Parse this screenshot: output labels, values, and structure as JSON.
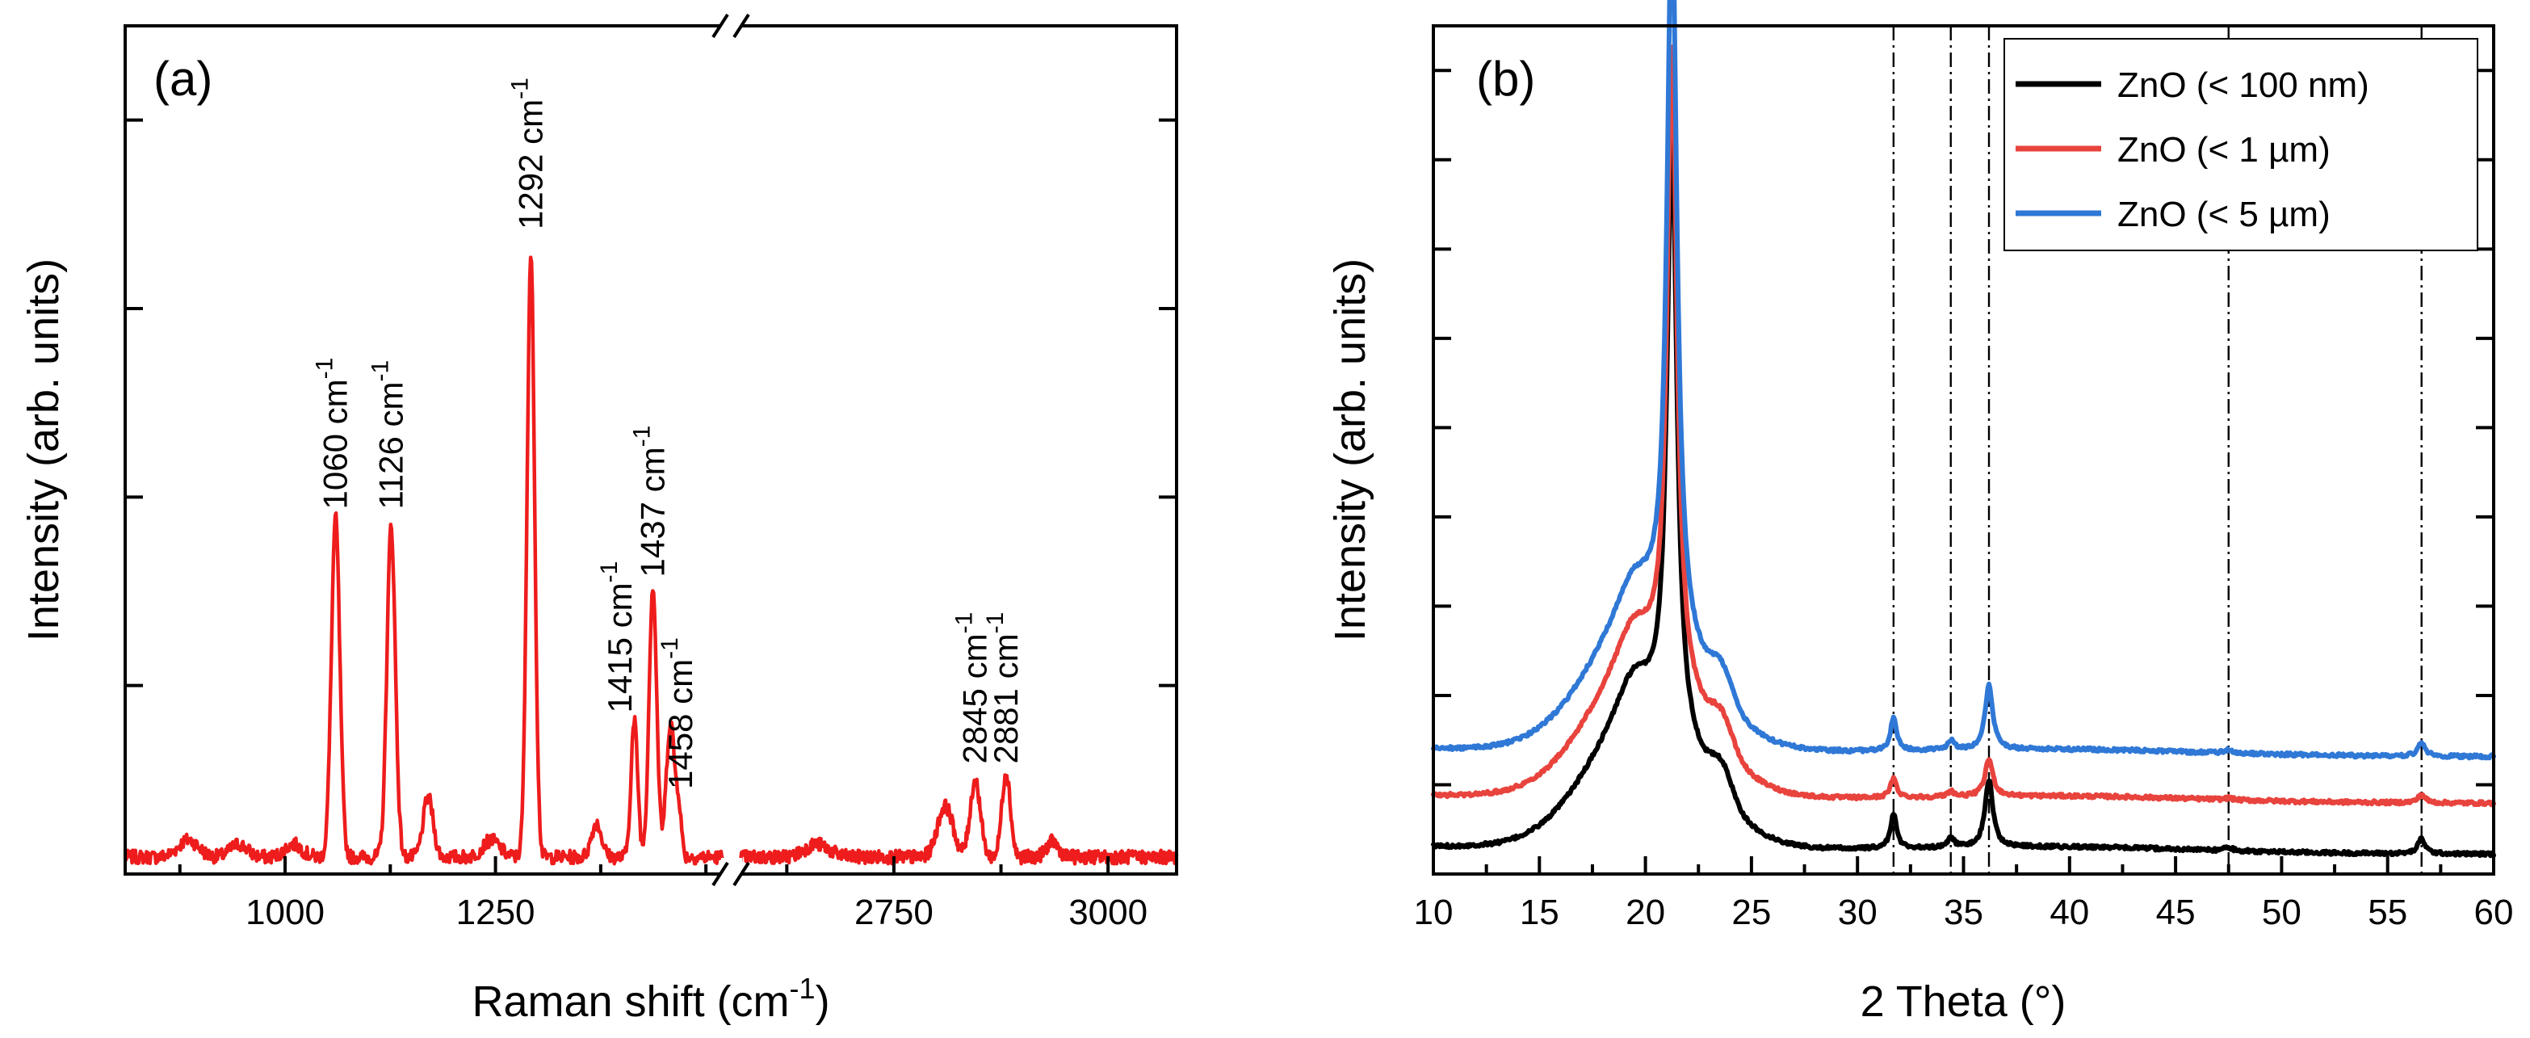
{
  "chart_data": [
    {
      "type": "line",
      "panel_label": "(a)",
      "xlabel": "Raman shift (cm",
      "xlabel_sup": "-1",
      "xlabel_close": ")",
      "ylabel": "Intensity (arb. units)",
      "broken_x_axis": true,
      "segments": [
        {
          "xlim": [
            810,
            1520
          ],
          "ticks": [
            1000,
            1250
          ]
        },
        {
          "xlim": [
            2570,
            3080
          ],
          "ticks": [
            2750,
            3000
          ]
        }
      ],
      "ylim": [
        0,
        1
      ],
      "y_major_ticks": 4,
      "series": [
        {
          "name": "Raman spectrum",
          "color": "#ee1c1c",
          "baseline": 0.02,
          "noise": 0.008,
          "peaks": [
            {
              "x": 885,
              "h": 0.02,
              "w": 12
            },
            {
              "x": 945,
              "h": 0.015,
              "w": 10
            },
            {
              "x": 1010,
              "h": 0.015,
              "w": 10
            },
            {
              "x": 1060,
              "h": 0.4,
              "w": 5
            },
            {
              "x": 1126,
              "h": 0.39,
              "w": 5
            },
            {
              "x": 1170,
              "h": 0.07,
              "w": 6
            },
            {
              "x": 1245,
              "h": 0.02,
              "w": 10
            },
            {
              "x": 1292,
              "h": 0.71,
              "w": 4.5
            },
            {
              "x": 1370,
              "h": 0.04,
              "w": 6
            },
            {
              "x": 1415,
              "h": 0.16,
              "w": 4
            },
            {
              "x": 1437,
              "h": 0.32,
              "w": 4.5
            },
            {
              "x": 1458,
              "h": 0.16,
              "w": 5
            },
            {
              "x": 1468,
              "h": 0.05,
              "w": 3
            },
            {
              "x": 2660,
              "h": 0.015,
              "w": 14
            },
            {
              "x": 2810,
              "h": 0.06,
              "w": 9
            },
            {
              "x": 2845,
              "h": 0.09,
              "w": 6
            },
            {
              "x": 2881,
              "h": 0.1,
              "w": 5
            },
            {
              "x": 2935,
              "h": 0.018,
              "w": 7
            }
          ]
        }
      ],
      "annotations": [
        {
          "text": "1060 cm",
          "sup": "-1",
          "x": 1060,
          "y": 0.43
        },
        {
          "text": "1126 cm",
          "sup": "-1",
          "x": 1126,
          "y": 0.43
        },
        {
          "text": "1292 cm",
          "sup": "-1",
          "x": 1292,
          "y": 0.76
        },
        {
          "text": "1415 cm",
          "sup": "-1",
          "x": 1398,
          "y": 0.19
        },
        {
          "text": "1437 cm",
          "sup": "-1",
          "x": 1437,
          "y": 0.35
        },
        {
          "text": "1458 cm",
          "sup": "-1",
          "x": 1470,
          "y": 0.1
        },
        {
          "text": "2845 cm",
          "sup": "-1",
          "x": 2845,
          "y": 0.13
        },
        {
          "text": "2881 cm",
          "sup": "-1",
          "x": 2881,
          "y": 0.13
        }
      ]
    },
    {
      "type": "line",
      "panel_label": "(b)",
      "xlabel": "2 Theta (°)",
      "ylabel": "Intensity (arb. units)",
      "xlim": [
        10,
        60
      ],
      "x_ticks": [
        10,
        15,
        20,
        25,
        30,
        35,
        40,
        45,
        50,
        55,
        60
      ],
      "ylim": [
        0,
        1
      ],
      "y_major_ticks": 9,
      "reference_lines": [
        31.7,
        34.4,
        36.2,
        47.5,
        56.6
      ],
      "legend": {
        "position": "top-right"
      },
      "series": [
        {
          "name": "ZnO (< 100 nm)",
          "legend_label": "ZnO (< 100 nm)",
          "color": "#000000",
          "offset": 0.02,
          "main_peak": 0.7,
          "znO_scale": 1.0
        },
        {
          "name": "ZnO (< 1 µm)",
          "legend_label": "ZnO (< 1 µm)",
          "color": "#e8433d",
          "offset": 0.08,
          "main_peak": 0.74,
          "znO_scale": 0.55
        },
        {
          "name": "ZnO (< 5 µm)",
          "legend_label": "ZnO (< 5 µm)",
          "color": "#2f78d6",
          "offset": 0.135,
          "main_peak": 0.85,
          "znO_scale": 0.95
        }
      ]
    }
  ]
}
